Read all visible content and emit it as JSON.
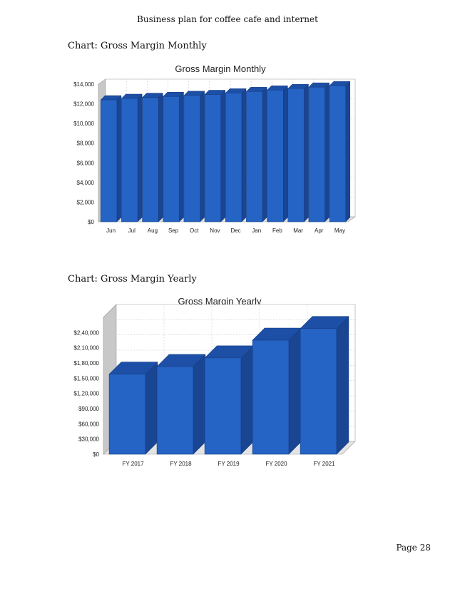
{
  "document": {
    "header": "Business plan for coffee cafe and internet",
    "page_label": "Page 28"
  },
  "sections": {
    "monthly_caption": "Chart: Gross Margin Monthly",
    "yearly_caption": "Chart: Gross Margin Yearly"
  },
  "colors": {
    "bar_front": "#2563c4",
    "bar_top": "#1d4fa6",
    "bar_side": "#1a4592",
    "grid": "#cccccc",
    "wall": "#c8c8c8"
  },
  "chart_data": [
    {
      "type": "bar",
      "title": "Gross Margin Monthly",
      "categories": [
        "Jun",
        "Jul",
        "Aug",
        "Sep",
        "Oct",
        "Nov",
        "Dec",
        "Jan",
        "Feb",
        "Mar",
        "Apr",
        "May"
      ],
      "values": [
        12400,
        12550,
        12650,
        12750,
        12850,
        12950,
        13100,
        13250,
        13400,
        13550,
        13700,
        13850
      ],
      "ylim": [
        0,
        14000
      ],
      "yticks": [
        "$0",
        "$2,000",
        "$4,000",
        "$6,000",
        "$8,000",
        "$10,000",
        "$12,000",
        "$14,000"
      ],
      "grid": true
    },
    {
      "type": "bar",
      "title": "Gross Margin Yearly",
      "categories": [
        "FY 2017",
        "FY 2018",
        "FY 2019",
        "FY 2020",
        "FY 2021"
      ],
      "values": [
        158000,
        173000,
        190000,
        225000,
        248000
      ],
      "ylim": [
        0,
        270000
      ],
      "yticks": [
        "$0",
        "$30,000",
        "$60,000",
        "$90,000",
        "$1,20,000",
        "$1,50,000",
        "$1,80,000",
        "$2,10,000",
        "$2,40,000"
      ],
      "grid": true
    }
  ]
}
